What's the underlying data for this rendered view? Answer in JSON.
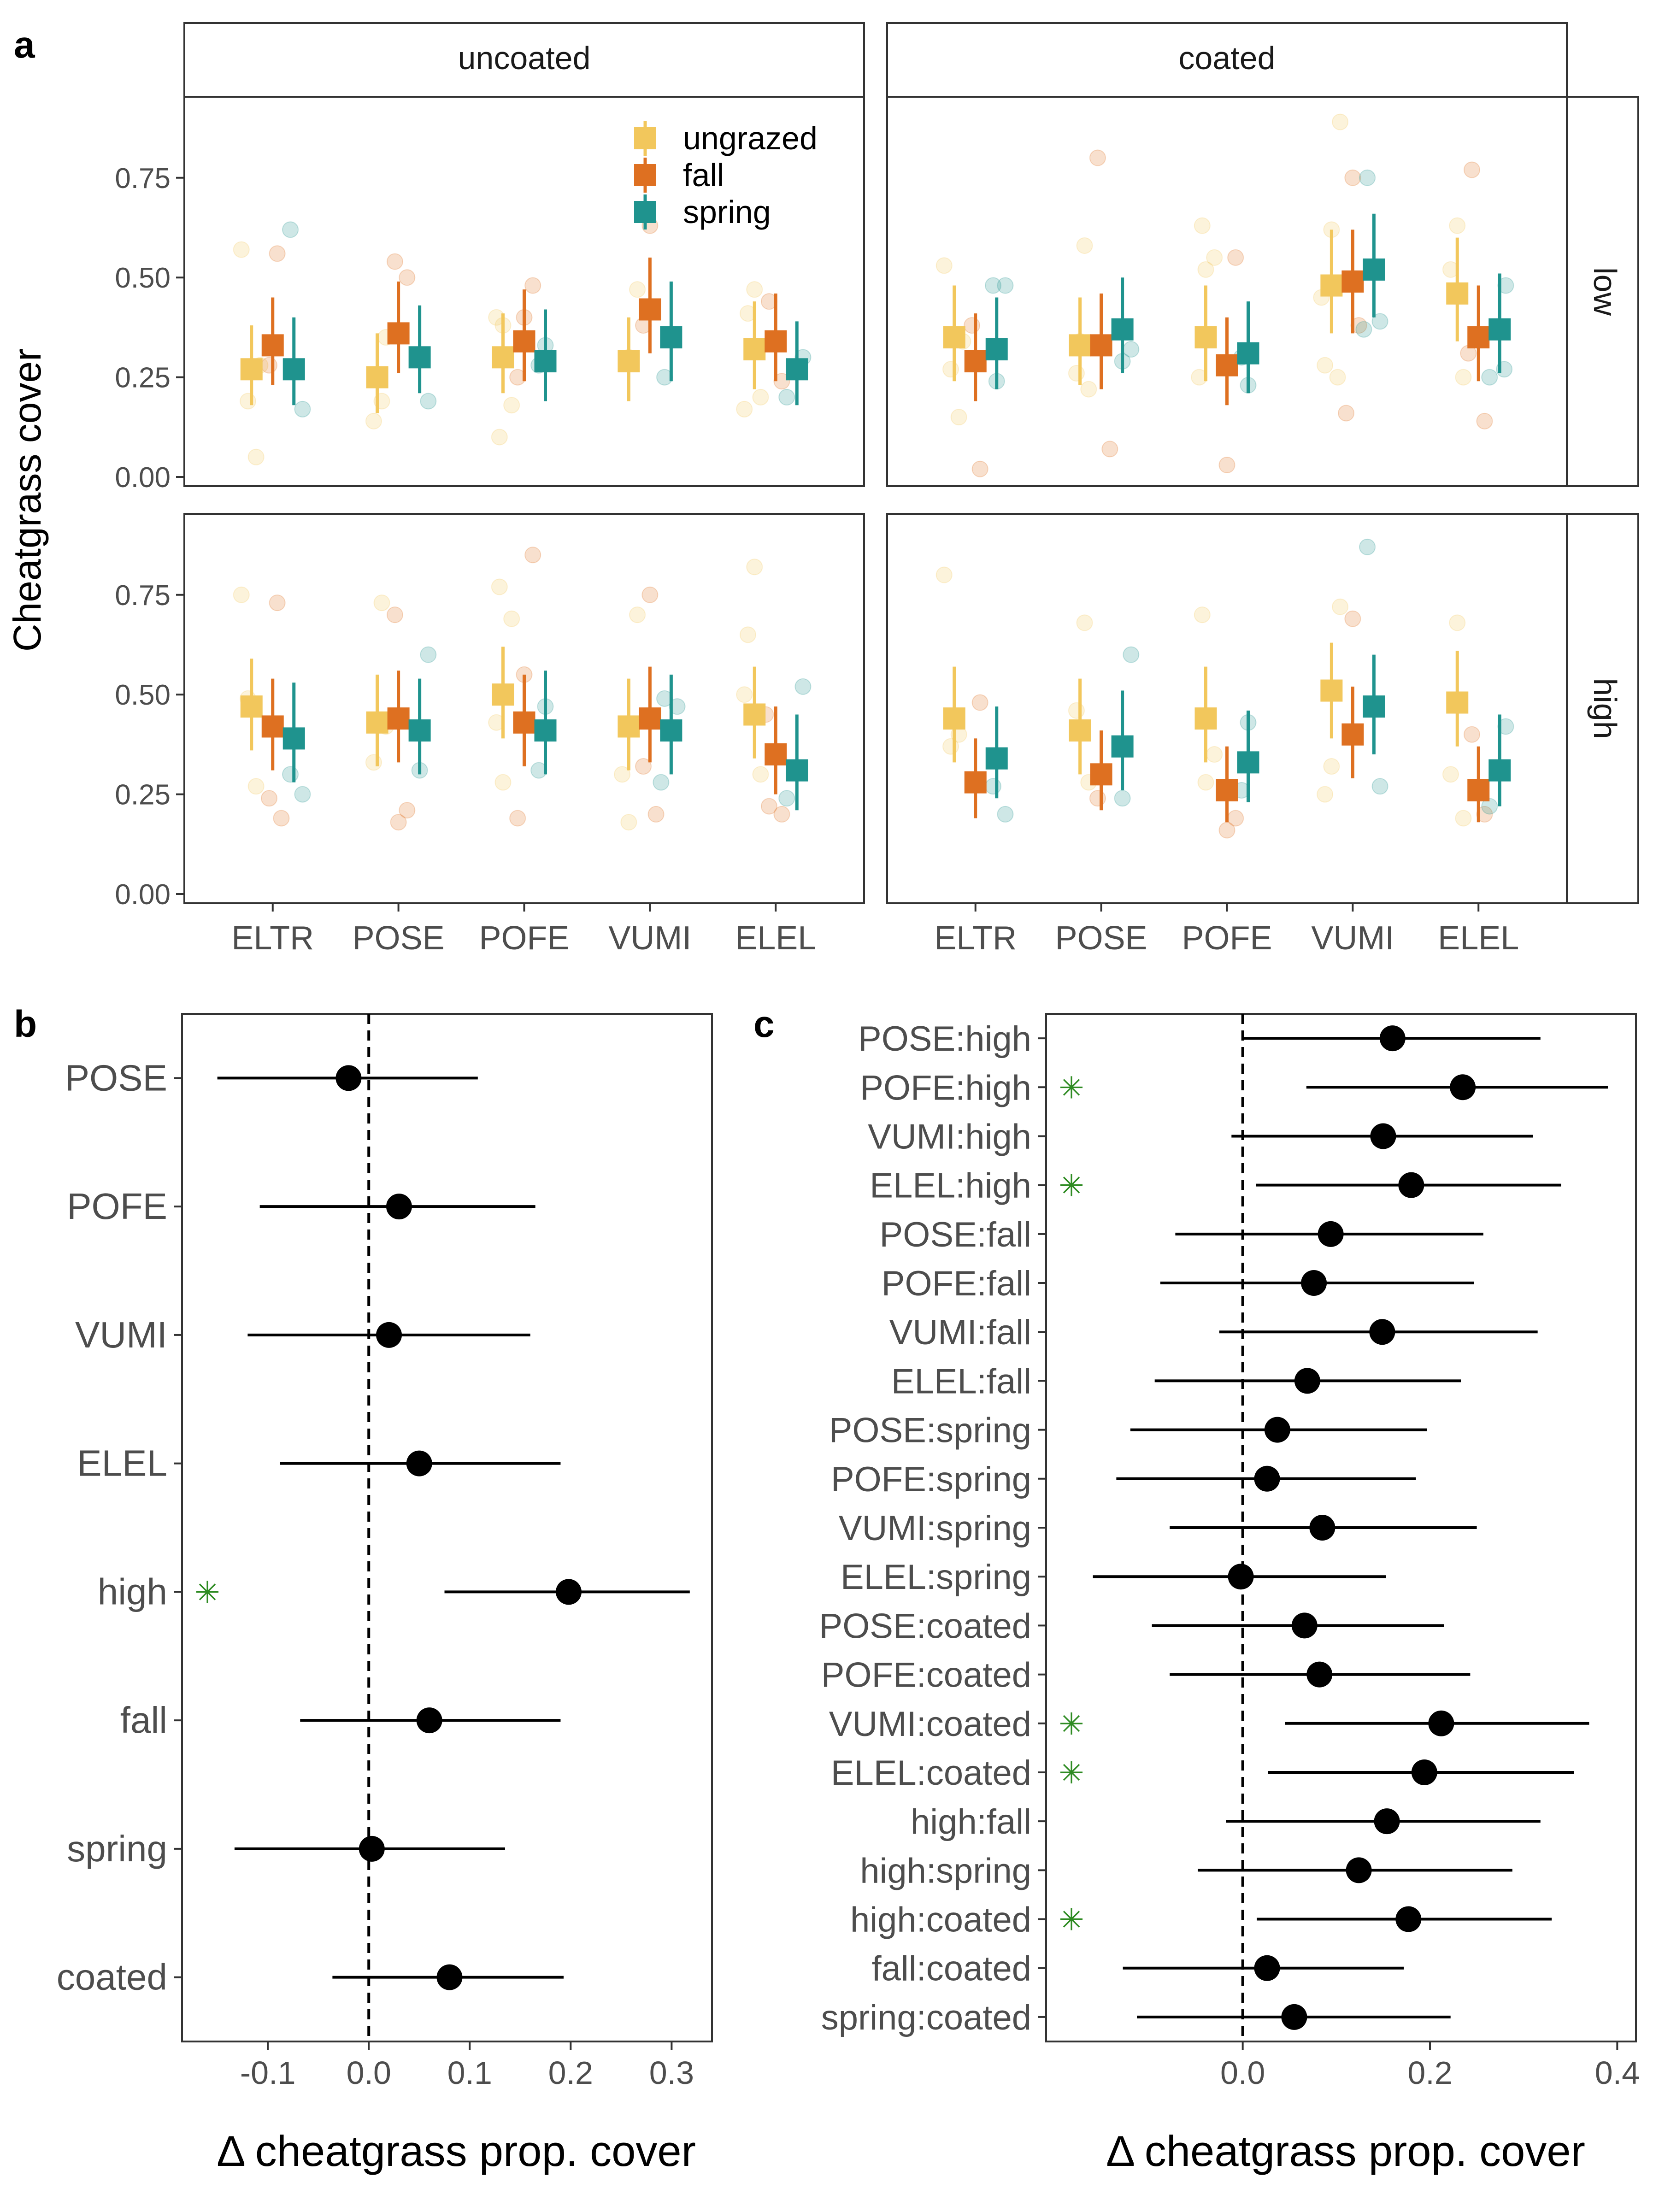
{
  "colors": {
    "ungrazed": "#f2c75c",
    "fall": "#de7021",
    "spring": "#1f938e",
    "point": "#000000",
    "star": "#2e8b22",
    "panel_border": "#333333",
    "strip_bg": "#ffffff"
  },
  "panel_labels": {
    "a": "a",
    "b": "b",
    "c": "c"
  },
  "chart_data": [
    {
      "id": "a",
      "type": "scatter",
      "ylabel": "Cheatgrass cover",
      "xlabel": "",
      "ylim": [
        0,
        0.93
      ],
      "yticks": [
        0,
        0.25,
        0.5,
        0.75
      ],
      "ytick_labels": [
        "0.00",
        "0.25",
        "0.50",
        "0.75"
      ],
      "categories": [
        "ELTR",
        "POSE",
        "POFE",
        "VUMI",
        "ELEL"
      ],
      "columns": [
        "uncoated",
        "coated"
      ],
      "rows": [
        "low",
        "high"
      ],
      "legend": {
        "placement": "top-right of first panel",
        "entries": [
          "ungrazed",
          "fall",
          "spring"
        ]
      },
      "grid": false,
      "panels": [
        {
          "column": "uncoated",
          "row": "low",
          "series": [
            {
              "name": "ungrazed",
              "values": [
                0.27,
                0.25,
                0.3,
                0.29,
                0.32
              ],
              "lower": [
                0.18,
                0.16,
                0.21,
                0.19,
                0.22
              ],
              "upper": [
                0.38,
                0.36,
                0.41,
                0.4,
                0.44
              ],
              "raw": [
                [
                  0.57,
                  0.05,
                  0.19,
                  0.28
                ],
                [
                  0.19,
                  0.14,
                  0.35
                ],
                [
                  0.1,
                  0.18,
                  0.38,
                  0.4
                ],
                [
                  0.47,
                  0.3
                ],
                [
                  0.47,
                  0.41,
                  0.2,
                  0.17
                ]
              ]
            },
            {
              "name": "fall",
              "values": [
                0.33,
                0.36,
                0.34,
                0.42,
                0.34
              ],
              "lower": [
                0.23,
                0.26,
                0.24,
                0.31,
                0.24
              ],
              "upper": [
                0.45,
                0.49,
                0.47,
                0.55,
                0.46
              ],
              "raw": [
                [
                  0.56,
                  0.28
                ],
                [
                  0.54,
                  0.5
                ],
                [
                  0.48,
                  0.4,
                  0.25
                ],
                [
                  0.63,
                  0.38
                ],
                [
                  0.44,
                  0.24
                ]
              ]
            },
            {
              "name": "spring",
              "values": [
                0.27,
                0.3,
                0.29,
                0.35,
                0.27
              ],
              "lower": [
                0.18,
                0.21,
                0.19,
                0.24,
                0.18
              ],
              "upper": [
                0.4,
                0.43,
                0.42,
                0.49,
                0.39
              ],
              "raw": [
                [
                  0.62,
                  0.17
                ],
                [
                  0.19
                ],
                [
                  0.33,
                  0.28
                ],
                [
                  0.25
                ],
                [
                  0.3,
                  0.2
                ]
              ]
            }
          ]
        },
        {
          "column": "coated",
          "row": "low",
          "series": [
            {
              "name": "ungrazed",
              "values": [
                0.35,
                0.33,
                0.35,
                0.48,
                0.46
              ],
              "lower": [
                0.24,
                0.23,
                0.24,
                0.36,
                0.34
              ],
              "upper": [
                0.48,
                0.45,
                0.48,
                0.62,
                0.6
              ],
              "raw": [
                [
                  0.53,
                  0.15,
                  0.27,
                  0.34
                ],
                [
                  0.58,
                  0.26,
                  0.22,
                  0.34
                ],
                [
                  0.63,
                  0.55,
                  0.52,
                  0.25
                ],
                [
                  0.89,
                  0.62,
                  0.28,
                  0.25,
                  0.45
                ],
                [
                  0.63,
                  0.52,
                  0.25
                ]
              ]
            },
            {
              "name": "fall",
              "values": [
                0.29,
                0.33,
                0.28,
                0.49,
                0.35
              ],
              "lower": [
                0.19,
                0.22,
                0.18,
                0.36,
                0.24
              ],
              "upper": [
                0.41,
                0.46,
                0.4,
                0.62,
                0.48
              ],
              "raw": [
                [
                  0.02,
                  0.38
                ],
                [
                  0.8,
                  0.07
                ],
                [
                  0.55,
                  0.03
                ],
                [
                  0.75,
                  0.16,
                  0.38
                ],
                [
                  0.77,
                  0.14,
                  0.31
                ]
              ]
            },
            {
              "name": "spring",
              "values": [
                0.32,
                0.37,
                0.31,
                0.52,
                0.37
              ],
              "lower": [
                0.22,
                0.26,
                0.21,
                0.4,
                0.26
              ],
              "upper": [
                0.45,
                0.5,
                0.44,
                0.66,
                0.51
              ],
              "raw": [
                [
                  0.48,
                  0.48,
                  0.24
                ],
                [
                  0.32,
                  0.29
                ],
                [
                  0.23,
                  0.3
                ],
                [
                  0.75,
                  0.39,
                  0.37
                ],
                [
                  0.48,
                  0.25,
                  0.27
                ]
              ]
            }
          ]
        },
        {
          "column": "uncoated",
          "row": "high",
          "series": [
            {
              "name": "ungrazed",
              "values": [
                0.47,
                0.43,
                0.5,
                0.42,
                0.45
              ],
              "lower": [
                0.36,
                0.32,
                0.39,
                0.31,
                0.34
              ],
              "upper": [
                0.59,
                0.55,
                0.62,
                0.54,
                0.57
              ],
              "raw": [
                [
                  0.75,
                  0.27,
                  0.49
                ],
                [
                  0.73,
                  0.33,
                  0.42
                ],
                [
                  0.77,
                  0.69,
                  0.28,
                  0.43
                ],
                [
                  0.7,
                  0.18,
                  0.3
                ],
                [
                  0.82,
                  0.65,
                  0.3,
                  0.5
                ]
              ]
            },
            {
              "name": "fall",
              "values": [
                0.42,
                0.44,
                0.43,
                0.44,
                0.35
              ],
              "lower": [
                0.31,
                0.33,
                0.32,
                0.33,
                0.25
              ],
              "upper": [
                0.54,
                0.56,
                0.55,
                0.57,
                0.47
              ],
              "raw": [
                [
                  0.73,
                  0.24,
                  0.19
                ],
                [
                  0.7,
                  0.21,
                  0.18
                ],
                [
                  0.85,
                  0.55,
                  0.19
                ],
                [
                  0.75,
                  0.32,
                  0.2
                ],
                [
                  0.22,
                  0.2,
                  0.45
                ]
              ]
            },
            {
              "name": "spring",
              "values": [
                0.39,
                0.41,
                0.41,
                0.41,
                0.31
              ],
              "lower": [
                0.28,
                0.3,
                0.3,
                0.3,
                0.21
              ],
              "upper": [
                0.53,
                0.54,
                0.56,
                0.55,
                0.45
              ],
              "raw": [
                [
                  0.3,
                  0.25
                ],
                [
                  0.6,
                  0.31
                ],
                [
                  0.47,
                  0.31
                ],
                [
                  0.49,
                  0.47,
                  0.28
                ],
                [
                  0.52,
                  0.24
                ]
              ]
            }
          ]
        },
        {
          "column": "coated",
          "row": "high",
          "series": [
            {
              "name": "ungrazed",
              "values": [
                0.44,
                0.41,
                0.44,
                0.51,
                0.48
              ],
              "lower": [
                0.33,
                0.3,
                0.33,
                0.39,
                0.37
              ],
              "upper": [
                0.57,
                0.54,
                0.57,
                0.63,
                0.61
              ],
              "raw": [
                [
                  0.8,
                  0.4,
                  0.37
                ],
                [
                  0.68,
                  0.46,
                  0.28
                ],
                [
                  0.7,
                  0.35,
                  0.28
                ],
                [
                  0.72,
                  0.32,
                  0.25
                ],
                [
                  0.68,
                  0.3,
                  0.19
                ]
              ]
            },
            {
              "name": "fall",
              "values": [
                0.28,
                0.3,
                0.26,
                0.4,
                0.26
              ],
              "lower": [
                0.19,
                0.21,
                0.18,
                0.29,
                0.18
              ],
              "upper": [
                0.39,
                0.41,
                0.37,
                0.52,
                0.37
              ],
              "raw": [
                [
                  0.48
                ],
                [
                  0.24
                ],
                [
                  0.19,
                  0.16
                ],
                [
                  0.69
                ],
                [
                  0.4,
                  0.2
                ]
              ]
            },
            {
              "name": "spring",
              "values": [
                0.34,
                0.37,
                0.33,
                0.47,
                0.31
              ],
              "lower": [
                0.24,
                0.26,
                0.23,
                0.35,
                0.22
              ],
              "upper": [
                0.47,
                0.51,
                0.46,
                0.6,
                0.45
              ],
              "raw": [
                [
                  0.27,
                  0.2
                ],
                [
                  0.6,
                  0.24
                ],
                [
                  0.43,
                  0.26
                ],
                [
                  0.87,
                  0.27
                ],
                [
                  0.42,
                  0.22
                ]
              ]
            }
          ]
        }
      ]
    },
    {
      "id": "b",
      "type": "scatter",
      "xlabel": "Δ cheatgrass prop. cover",
      "ylabel": "",
      "xlim": [
        -0.185,
        0.34
      ],
      "xticks": [
        -0.1,
        0,
        0.1,
        0.2,
        0.3
      ],
      "xtick_labels": [
        "-0.1",
        "0.0",
        "0.1",
        "0.2",
        "0.3"
      ],
      "reference_line": 0,
      "grid": false,
      "categories": [
        "POSE",
        "POFE",
        "VUMI",
        "ELEL",
        "high",
        "fall",
        "spring",
        "coated"
      ],
      "values": [
        -0.02,
        0.03,
        0.02,
        0.05,
        0.198,
        0.06,
        0.003,
        0.08
      ],
      "lower": [
        -0.15,
        -0.108,
        -0.12,
        -0.088,
        0.075,
        -0.068,
        -0.133,
        -0.036
      ],
      "upper": [
        0.108,
        0.165,
        0.16,
        0.19,
        0.318,
        0.19,
        0.135,
        0.193
      ],
      "significant": [
        false,
        false,
        false,
        false,
        true,
        false,
        false,
        false
      ],
      "marker": "✳"
    },
    {
      "id": "c",
      "type": "scatter",
      "xlabel": "Δ cheatgrass prop. cover",
      "ylabel": "",
      "xlim": [
        -0.21,
        0.42
      ],
      "xticks": [
        0,
        0.2,
        0.4
      ],
      "xtick_labels": [
        "0.0",
        "0.2",
        "0.4"
      ],
      "reference_line": 0,
      "grid": false,
      "categories": [
        "POSE:high",
        "POFE:high",
        "VUMI:high",
        "ELEL:high",
        "POSE:fall",
        "POFE:fall",
        "VUMI:fall",
        "ELEL:fall",
        "POSE:spring",
        "POFE:spring",
        "VUMI:spring",
        "ELEL:spring",
        "POSE:coated",
        "POFE:coated",
        "VUMI:coated",
        "ELEL:coated",
        "high:fall",
        "high:spring",
        "high:coated",
        "fall:coated",
        "spring:coated"
      ],
      "values": [
        0.16,
        0.235,
        0.15,
        0.18,
        0.094,
        0.076,
        0.149,
        0.069,
        0.037,
        0.026,
        0.085,
        -0.002,
        0.066,
        0.082,
        0.212,
        0.194,
        0.154,
        0.124,
        0.177,
        0.026,
        0.055
      ],
      "lower": [
        0.0,
        0.068,
        -0.012,
        0.014,
        -0.072,
        -0.088,
        -0.025,
        -0.094,
        -0.12,
        -0.135,
        -0.078,
        -0.16,
        -0.097,
        -0.078,
        0.045,
        0.027,
        -0.018,
        -0.048,
        0.015,
        -0.128,
        -0.113
      ],
      "upper": [
        0.318,
        0.39,
        0.31,
        0.34,
        0.257,
        0.247,
        0.315,
        0.233,
        0.197,
        0.185,
        0.25,
        0.153,
        0.215,
        0.243,
        0.37,
        0.354,
        0.318,
        0.288,
        0.33,
        0.172,
        0.222
      ],
      "significant": [
        false,
        true,
        false,
        true,
        false,
        false,
        false,
        false,
        false,
        false,
        false,
        false,
        false,
        false,
        true,
        true,
        false,
        false,
        true,
        false,
        false
      ],
      "marker": "✳"
    }
  ]
}
